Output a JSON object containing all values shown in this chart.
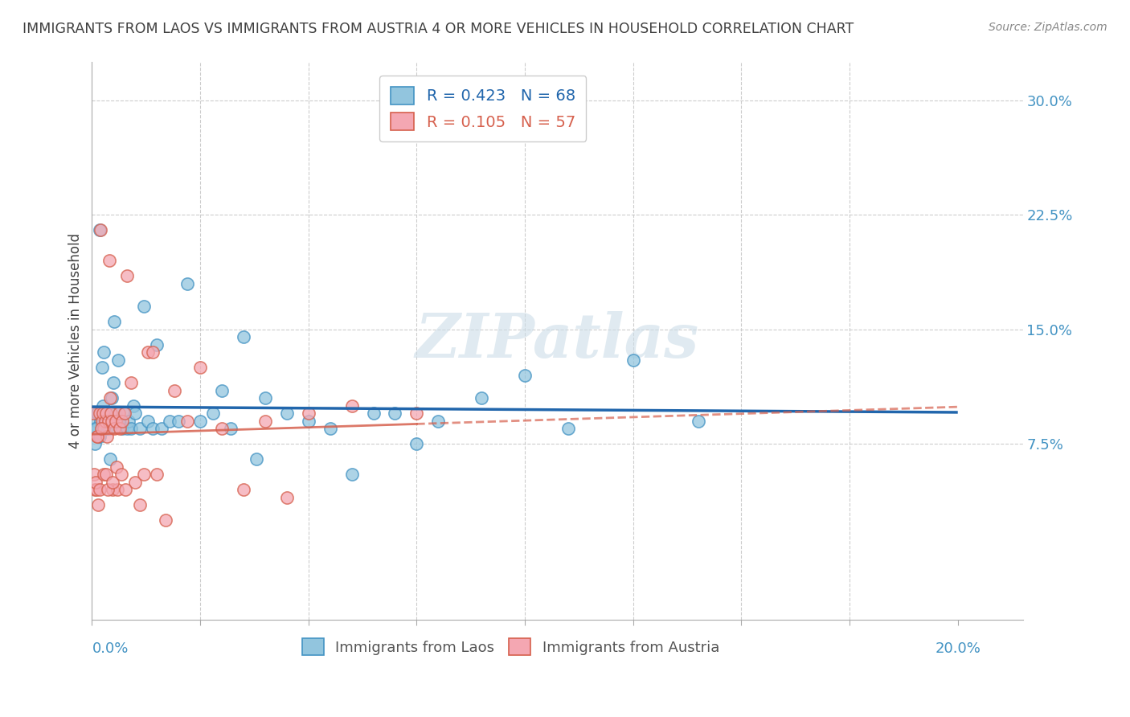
{
  "title": "IMMIGRANTS FROM LAOS VS IMMIGRANTS FROM AUSTRIA 4 OR MORE VEHICLES IN HOUSEHOLD CORRELATION CHART",
  "source": "Source: ZipAtlas.com",
  "ylabel": "4 or more Vehicles in Household",
  "ytick_vals": [
    0,
    7.5,
    15.0,
    22.5,
    30.0
  ],
  "ytick_labels": [
    "",
    "7.5%",
    "15.0%",
    "22.5%",
    "30.0%"
  ],
  "xtick_vals": [
    0,
    2.5,
    5.0,
    7.5,
    10.0,
    12.5,
    15.0,
    17.5,
    20.0
  ],
  "xlim": [
    0.0,
    21.5
  ],
  "ylim": [
    -4.0,
    32.5
  ],
  "legend_r_laos": "R = 0.423",
  "legend_n_laos": "N = 68",
  "legend_r_austria": "R = 0.105",
  "legend_n_austria": "N = 57",
  "color_laos": "#92c5de",
  "color_laos_edge": "#4393c3",
  "color_austria": "#f4a7b2",
  "color_austria_edge": "#d6604d",
  "color_laos_line": "#2166ac",
  "color_austria_line": "#d6604d",
  "color_title": "#404040",
  "color_source": "#888888",
  "color_yaxis_labels": "#4393c3",
  "color_xaxis_labels": "#4393c3",
  "watermark": "ZIPatlas",
  "watermark_color": "#ccdde8",
  "grid_color": "#cccccc",
  "laos_x": [
    0.05,
    0.07,
    0.1,
    0.12,
    0.15,
    0.18,
    0.2,
    0.22,
    0.25,
    0.28,
    0.3,
    0.32,
    0.35,
    0.38,
    0.4,
    0.43,
    0.45,
    0.48,
    0.5,
    0.55,
    0.6,
    0.65,
    0.7,
    0.75,
    0.8,
    0.85,
    0.9,
    0.95,
    1.0,
    1.1,
    1.2,
    1.3,
    1.4,
    1.5,
    1.6,
    1.8,
    2.0,
    2.2,
    2.5,
    2.8,
    3.0,
    3.2,
    3.5,
    3.8,
    4.0,
    4.5,
    5.0,
    5.5,
    6.0,
    6.5,
    7.0,
    7.5,
    8.0,
    9.0,
    10.0,
    11.0,
    12.5,
    14.0,
    0.08,
    0.13,
    0.17,
    0.23,
    0.27,
    0.33,
    0.37,
    0.42,
    0.52,
    0.62
  ],
  "laos_y": [
    8.5,
    7.5,
    9.0,
    8.5,
    9.5,
    8.0,
    9.0,
    8.5,
    10.0,
    9.0,
    8.5,
    9.5,
    8.5,
    9.0,
    8.5,
    9.0,
    10.5,
    9.0,
    11.5,
    9.5,
    13.0,
    9.0,
    8.5,
    9.5,
    8.5,
    9.0,
    8.5,
    10.0,
    9.5,
    8.5,
    16.5,
    9.0,
    8.5,
    14.0,
    8.5,
    9.0,
    9.0,
    18.0,
    9.0,
    9.5,
    11.0,
    8.5,
    14.5,
    6.5,
    10.5,
    9.5,
    9.0,
    8.5,
    5.5,
    9.5,
    9.5,
    7.5,
    9.0,
    10.5,
    12.0,
    8.5,
    13.0,
    9.0,
    8.5,
    9.5,
    21.5,
    12.5,
    13.5,
    9.0,
    9.0,
    6.5,
    15.5,
    9.0
  ],
  "austria_x": [
    0.03,
    0.05,
    0.07,
    0.1,
    0.12,
    0.15,
    0.18,
    0.2,
    0.23,
    0.25,
    0.28,
    0.3,
    0.33,
    0.35,
    0.38,
    0.4,
    0.43,
    0.45,
    0.48,
    0.52,
    0.55,
    0.58,
    0.62,
    0.65,
    0.7,
    0.75,
    0.8,
    0.9,
    1.0,
    1.1,
    1.2,
    1.3,
    1.4,
    1.5,
    1.7,
    1.9,
    2.2,
    2.5,
    3.0,
    3.5,
    4.0,
    4.5,
    5.0,
    6.0,
    7.5,
    0.08,
    0.13,
    0.17,
    0.22,
    0.27,
    0.32,
    0.37,
    0.42,
    0.47,
    0.57,
    0.67,
    0.77
  ],
  "austria_y": [
    9.5,
    5.5,
    4.5,
    4.5,
    8.0,
    3.5,
    9.5,
    21.5,
    9.0,
    9.5,
    8.5,
    9.0,
    9.5,
    8.0,
    9.0,
    19.5,
    9.5,
    9.0,
    4.5,
    8.5,
    9.0,
    4.5,
    9.5,
    8.5,
    9.0,
    9.5,
    18.5,
    11.5,
    5.0,
    3.5,
    5.5,
    13.5,
    13.5,
    5.5,
    2.5,
    11.0,
    9.0,
    12.5,
    8.5,
    4.5,
    9.0,
    4.0,
    9.5,
    10.0,
    9.5,
    5.0,
    8.0,
    4.5,
    8.5,
    5.5,
    5.5,
    4.5,
    10.5,
    5.0,
    6.0,
    5.5,
    4.5
  ]
}
